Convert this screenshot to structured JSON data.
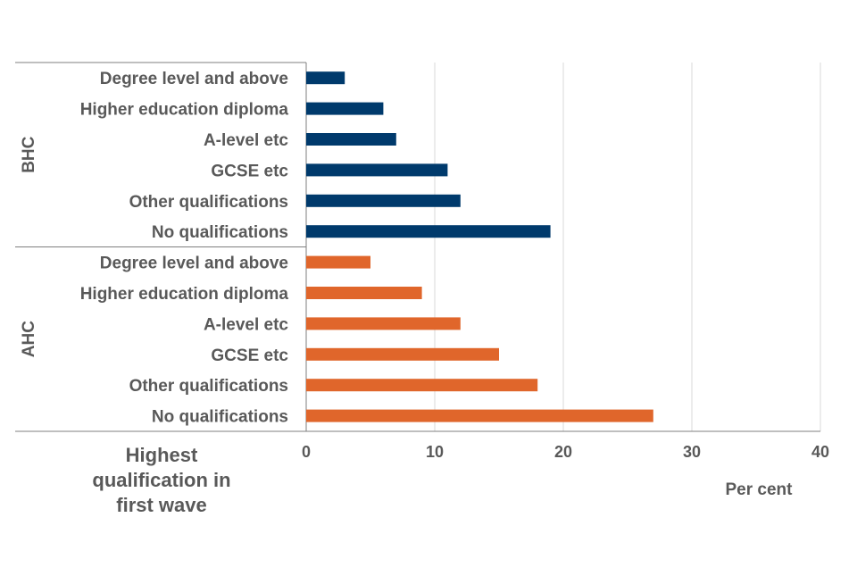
{
  "chart_data": {
    "type": "bar",
    "orientation": "horizontal",
    "xlabel": "Per cent",
    "ylabel_lines": [
      "Highest",
      "qualification in",
      "first wave"
    ],
    "xlim": [
      0,
      40
    ],
    "xticks": [
      "0",
      "10",
      "20",
      "30",
      "40"
    ],
    "grid": true,
    "groups": [
      {
        "name": "BHC",
        "color": "#003A6C",
        "categories": [
          "Degree level and above",
          "Higher education diploma",
          "A-level etc",
          "GCSE etc",
          "Other qualifications",
          "No qualifications"
        ],
        "values": [
          3,
          6,
          7,
          11,
          12,
          19
        ]
      },
      {
        "name": "AHC",
        "color": "#E0662B",
        "categories": [
          "Degree level and above",
          "Higher education diploma",
          "A-level etc",
          "GCSE etc",
          "Other qualifications",
          "No qualifications"
        ],
        "values": [
          5,
          9,
          12,
          15,
          18,
          27
        ]
      }
    ]
  }
}
